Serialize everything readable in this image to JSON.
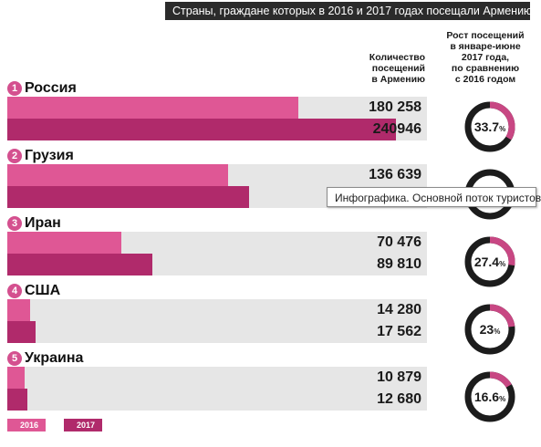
{
  "header": {
    "title": "Страны, граждане которых в 2016 и 2017 годах посещали Армению",
    "count_heading": [
      "Количество",
      "посещений",
      "в Армению"
    ],
    "growth_heading": [
      "Рост посещений",
      "в январе-июне",
      "2017 года,",
      "по сравнению",
      "с 2016 годом"
    ]
  },
  "tooltip": {
    "text": "Инфографика. Основной поток туристов"
  },
  "colors": {
    "y2016": "#df5795",
    "y2017": "#b02a6b",
    "track": "#e6e6e6",
    "ring": "#1c1c1c",
    "ring_highlight": "#c84783",
    "title_accent": "#3bbcb7"
  },
  "chart_data": {
    "type": "bar",
    "title": "Страны, граждане которых в 2016 и 2017 годах посещали Армению",
    "orientation": "horizontal",
    "categories": [
      "Россия",
      "Грузия",
      "Иран",
      "США",
      "Украина"
    ],
    "ranks": [
      "1",
      "2",
      "3",
      "4",
      "5"
    ],
    "xlim": [
      0,
      260000
    ],
    "series": [
      {
        "name": "2016",
        "values": [
          180258,
          136639,
          70476,
          14280,
          10879
        ],
        "labels": [
          "180 258",
          "136 639",
          "70 476",
          "14 280",
          "10 879"
        ]
      },
      {
        "name": "2017",
        "values": [
          240946,
          150000,
          89810,
          17562,
          12680
        ],
        "labels": [
          "240946",
          "",
          "89 810",
          "17 562",
          "12 680"
        ]
      }
    ],
    "growth": [
      {
        "value": 33.7,
        "label": "33.7"
      },
      {
        "value": null,
        "label": ""
      },
      {
        "value": 27.4,
        "label": "27.4"
      },
      {
        "value": 23,
        "label": "23"
      },
      {
        "value": 16.6,
        "label": "16.6"
      }
    ],
    "growth_unit": "%",
    "legend": [
      "2016",
      "2017"
    ]
  }
}
